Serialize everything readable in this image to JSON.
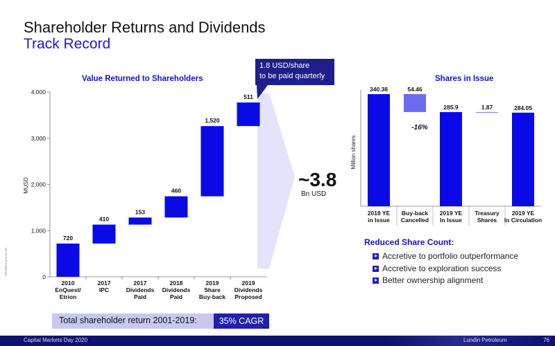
{
  "header": {
    "title": "Shareholder Returns and Dividends",
    "subtitle": "Track Record"
  },
  "callout": {
    "line1": "1.8 USD/share",
    "line2": "to be paid quarterly"
  },
  "total": {
    "value": "~3.8",
    "unit": "Bn USD"
  },
  "banner": {
    "label": "Total shareholder return 2001-2019:",
    "cagr": "35% CAGR"
  },
  "reduced_share_count": {
    "title": "Reduced Share Count:",
    "items": [
      "Accretive to portfolio outperformance",
      "Accretive to exploration success",
      "Better ownership alignment"
    ]
  },
  "footer": {
    "left": "Capital Markets Day 2020",
    "right": "Lundin Petroleum",
    "page": "76"
  },
  "doc_code": "NP20014-p11.01.20",
  "colors": {
    "bar": "#0a0ae6",
    "bar_light": "#6b6bef",
    "treasury": "#8888ee",
    "title": "#1212c8",
    "callout_bg": "#1e1e8c",
    "banner_bg": "#c9c8f2",
    "cagr_bg": "#1f1fb2",
    "footer_bg": "#10106e"
  },
  "chart_data": [
    {
      "type": "bar",
      "subtype": "waterfall",
      "title": "Value Returned to Shareholders",
      "ylabel": "MUSD",
      "ylim": [
        0,
        4000
      ],
      "yticks": [
        0,
        1000,
        2000,
        3000,
        4000
      ],
      "ytick_labels": [
        "0",
        "1,000",
        "2,000",
        "3,000",
        "4,000"
      ],
      "categories": [
        [
          "2010",
          "EnQuest/",
          "Etrion"
        ],
        [
          "2017",
          "IPC"
        ],
        [
          "2017",
          "Dividends",
          "Paid"
        ],
        [
          "2018",
          "Dividends",
          "Paid"
        ],
        [
          "2019",
          "Share",
          "Buy-back"
        ],
        [
          "2019",
          "Dividends",
          "Proposed"
        ]
      ],
      "values": [
        720,
        410,
        153,
        460,
        1520,
        511
      ],
      "value_labels": [
        "720",
        "410",
        "153",
        "460",
        "1,520",
        "511"
      ]
    },
    {
      "type": "bar",
      "subtype": "waterfall",
      "title": "Shares in Issue",
      "ylabel": "Million shares",
      "categories": [
        [
          "2018 YE",
          "in Issue"
        ],
        [
          "Buy-back",
          "Cancelled"
        ],
        [
          "2019 YE",
          "In Issue"
        ],
        [
          "Treasury",
          "Shares"
        ],
        [
          "2019 YE",
          "In Circulation"
        ]
      ],
      "values": [
        340.38,
        -54.46,
        285.9,
        -1.87,
        284.05
      ],
      "value_labels": [
        "340.38",
        "54.46",
        "285.9",
        "1.87",
        "284.05"
      ],
      "kinds": [
        "total",
        "decrease",
        "total",
        "decrease",
        "total"
      ],
      "annotation": "-16%"
    }
  ]
}
